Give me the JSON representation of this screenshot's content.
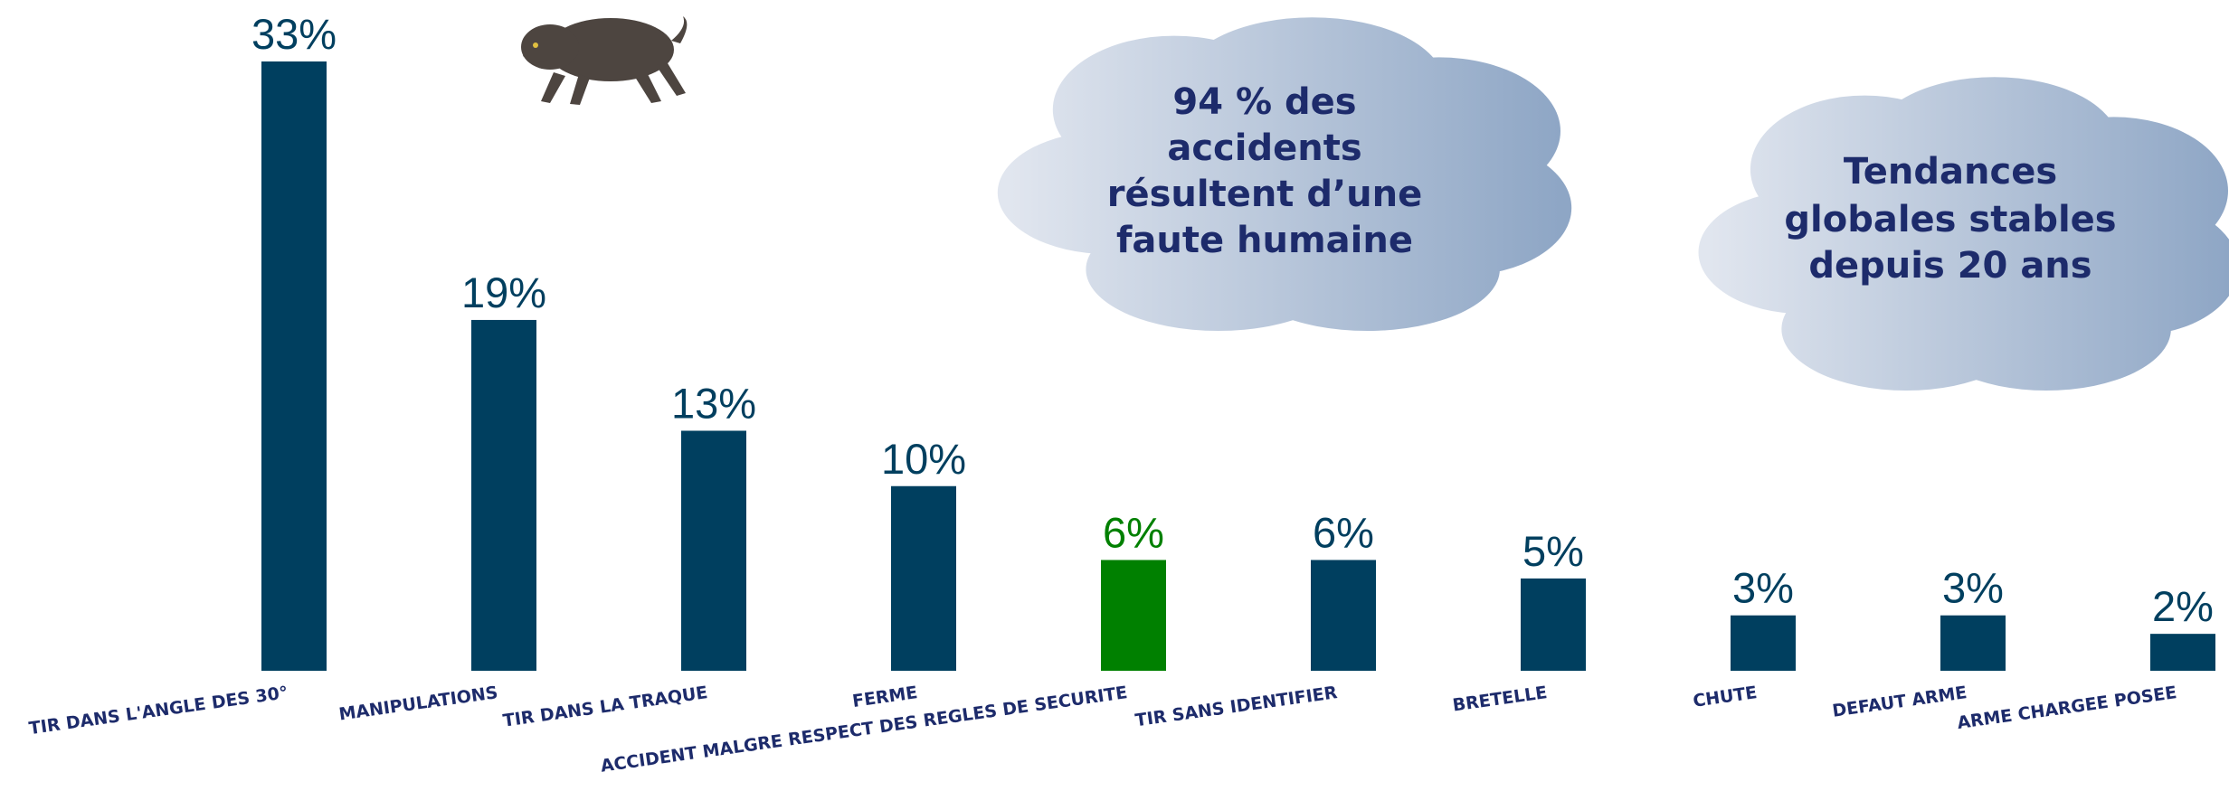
{
  "chart_data": {
    "type": "bar",
    "categories": [
      "TIR  DANS L'ANGLE DES 30°",
      "MANIPULATIONS",
      "TIR DANS LA TRAQUE",
      "FERME",
      "ACCIDENT MALGRE RESPECT DES REGLES DE SECURITE",
      "TIR SANS IDENTIFIER",
      "BRETELLE",
      "CHUTE",
      "DEFAUT ARME",
      "ARME CHARGEE POSEE"
    ],
    "values": [
      33,
      19,
      13,
      10,
      6,
      6,
      5,
      3,
      3,
      2
    ],
    "value_labels": [
      "33%",
      "19%",
      "13%",
      "10%",
      "6%",
      "6%",
      "5%",
      "3%",
      "3%",
      "2%"
    ],
    "colors": [
      "#003f5f",
      "#003f5f",
      "#003f5f",
      "#003f5f",
      "#008000",
      "#003f5f",
      "#003f5f",
      "#003f5f",
      "#003f5f",
      "#003f5f"
    ],
    "annotations": [
      {
        "lines": [
          "94 % des",
          "accidents",
          "résultent d’une",
          "faute humaine"
        ]
      },
      {
        "lines": [
          "Tendances",
          "globales stables",
          "depuis 20 ans"
        ]
      }
    ]
  }
}
